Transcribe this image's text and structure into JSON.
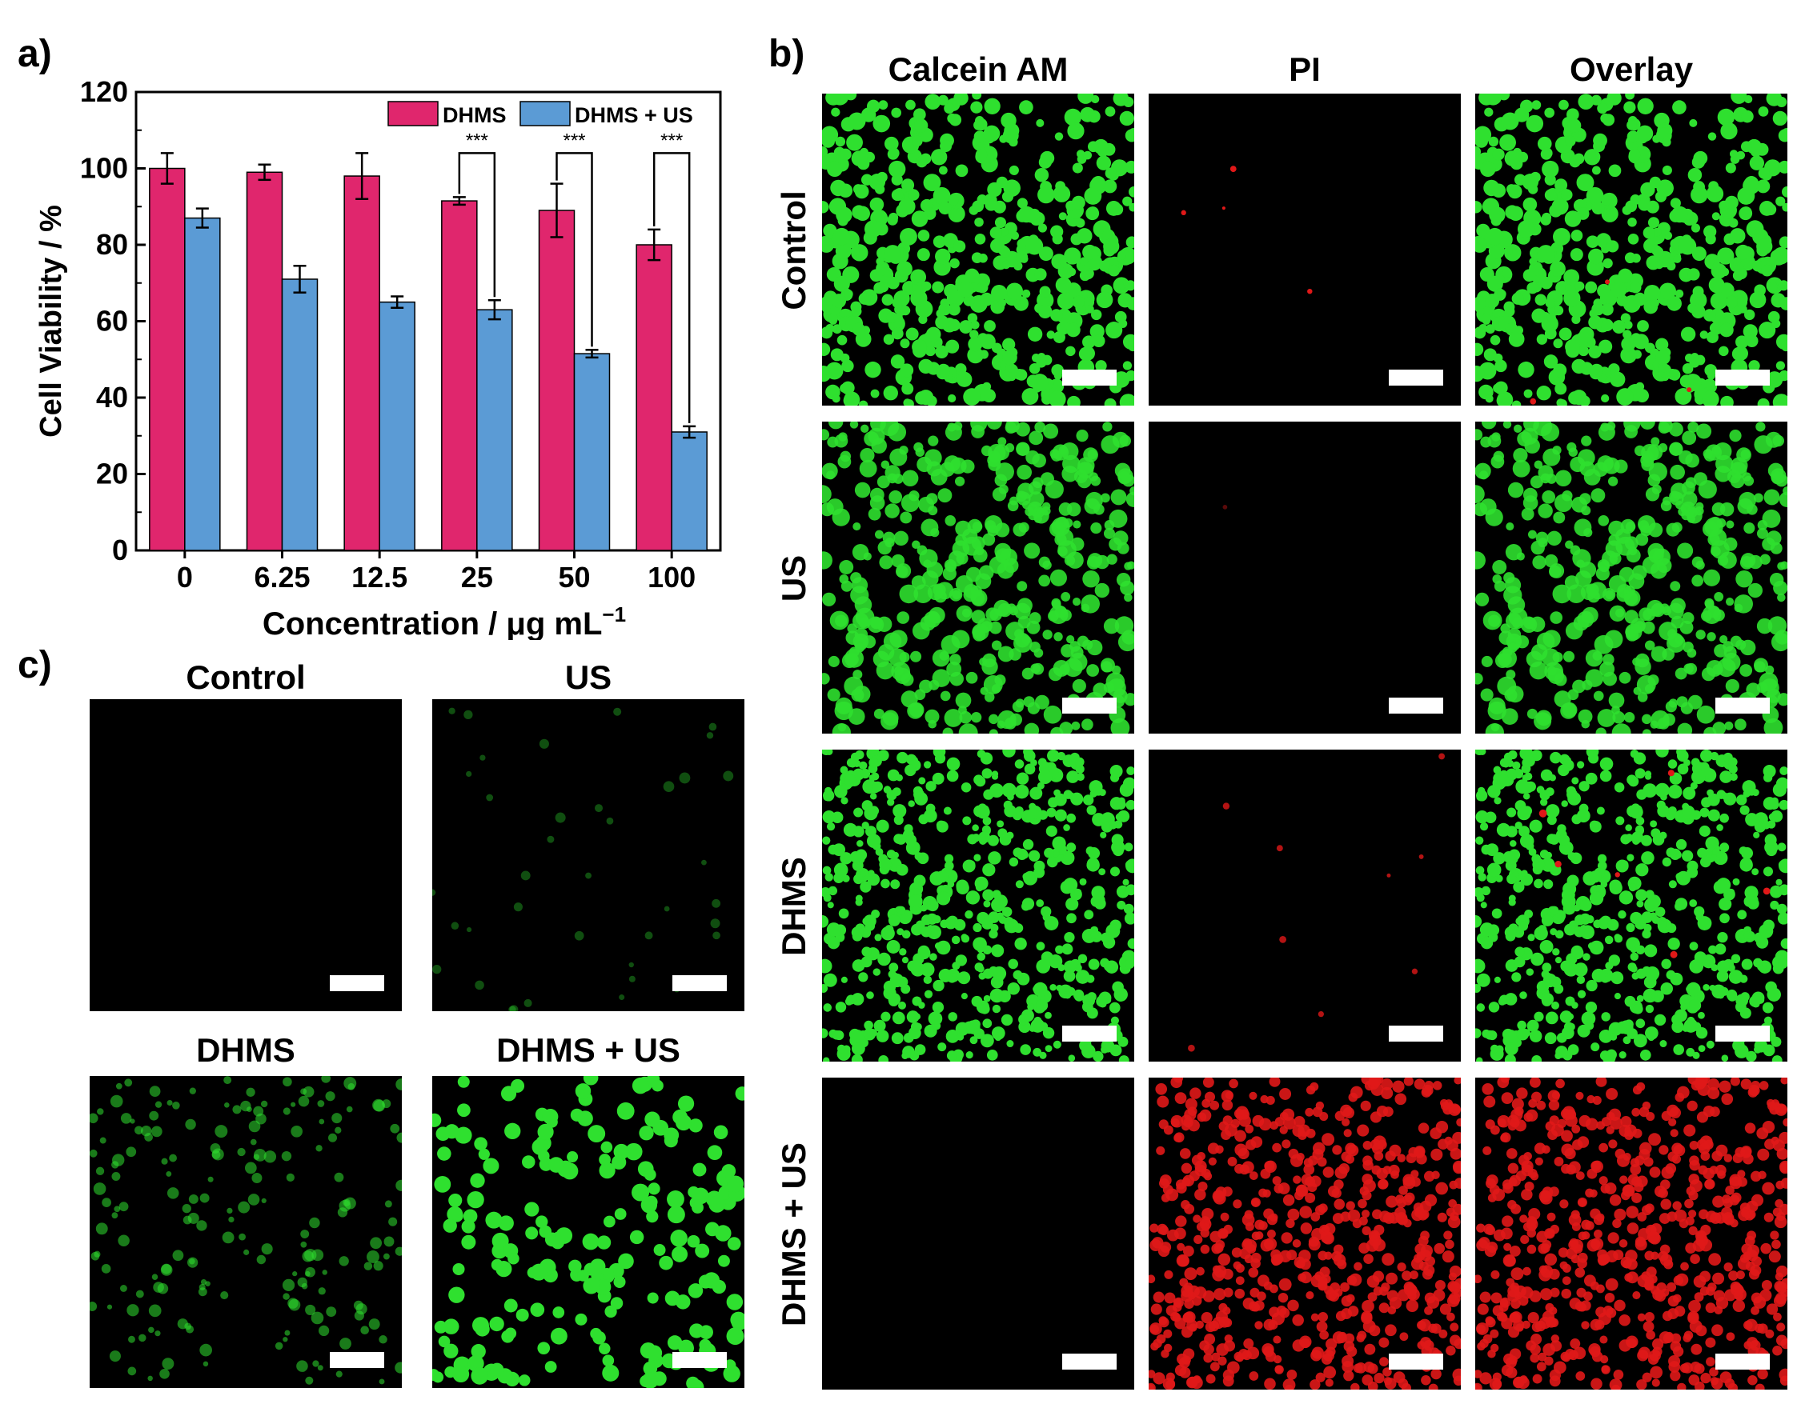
{
  "panel_labels": {
    "a": "a)",
    "b": "b)",
    "c": "c)"
  },
  "chart_data": {
    "type": "bar",
    "categories": [
      "0",
      "6.25",
      "12.5",
      "25",
      "50",
      "100"
    ],
    "series": [
      {
        "name": "DHMS",
        "color": "#E0266D",
        "values": [
          100,
          99,
          98,
          91.5,
          89,
          80
        ],
        "errors": [
          4,
          2,
          6,
          1,
          7,
          4
        ]
      },
      {
        "name": "DHMS + US",
        "color": "#5B9BD5",
        "values": [
          87,
          71,
          65,
          63,
          51.5,
          31
        ],
        "errors": [
          2.5,
          3.5,
          1.5,
          2.5,
          1,
          1.5
        ]
      }
    ],
    "ylabel": "Cell Viability / %",
    "xlabel_main": "Concentration / μg mL",
    "xlabel_sup": "−1",
    "ylim": [
      0,
      120
    ],
    "yticks": [
      "0",
      "20",
      "40",
      "60",
      "80",
      "100",
      "120"
    ],
    "significance": {
      "label": "***",
      "categories": [
        "25",
        "50",
        "100"
      ]
    },
    "legend_position": "top-right",
    "grid": false
  },
  "panel_b": {
    "columns": [
      "Calcein AM",
      "PI",
      "Overlay"
    ],
    "rows": [
      "Control",
      "US",
      "DHMS",
      "DHMS + US"
    ]
  },
  "panel_c": {
    "titles": [
      "Control",
      "US",
      "DHMS",
      "DHMS + US"
    ]
  },
  "colors": {
    "live": "#2fe02f",
    "dead": "#e01818",
    "background": "#000000"
  }
}
